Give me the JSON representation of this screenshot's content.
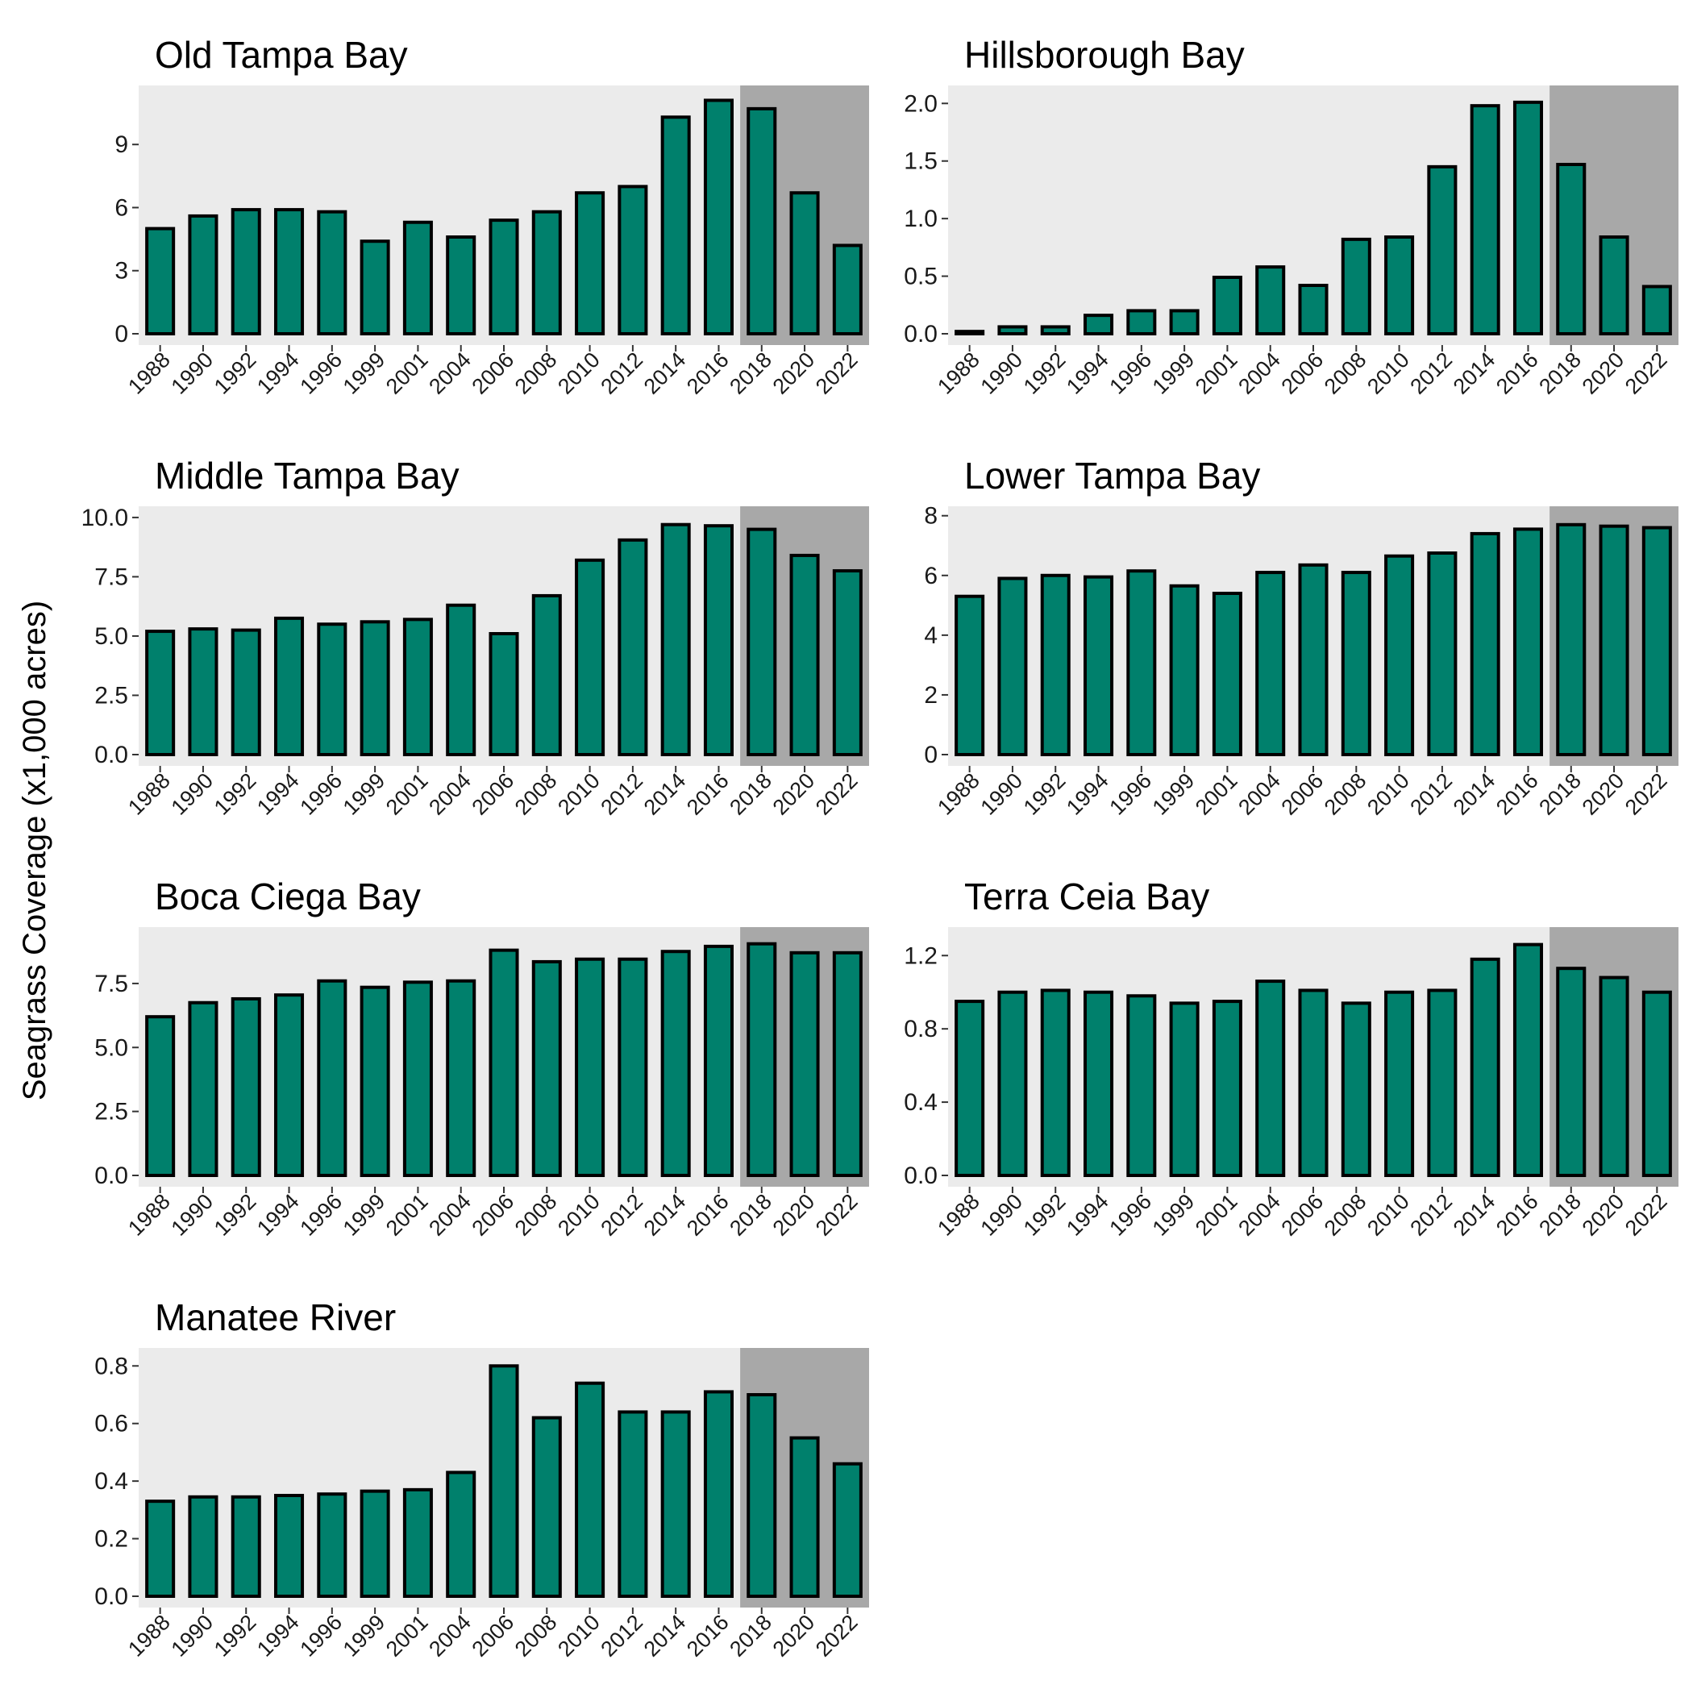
{
  "ylabel": "Seagrass Coverage (x1,000 acres)",
  "colors": {
    "bar": "#00806c",
    "bar_outline": "#000000",
    "panel_bg": "#ebebeb",
    "shade": "#a8a8a8"
  },
  "chart_data": [
    {
      "type": "bar",
      "title": "Old Tampa Bay",
      "categories": [
        "1988",
        "1990",
        "1992",
        "1994",
        "1996",
        "1999",
        "2001",
        "2004",
        "2006",
        "2008",
        "2010",
        "2012",
        "2014",
        "2016",
        "2018",
        "2020",
        "2022"
      ],
      "values": [
        5.0,
        5.6,
        5.9,
        5.9,
        5.8,
        4.4,
        5.3,
        4.6,
        5.4,
        5.8,
        6.7,
        7.0,
        10.3,
        11.1,
        10.7,
        6.7,
        4.2
      ],
      "ylim": [
        0,
        11.5
      ],
      "yticks": [
        0,
        3,
        6,
        9
      ],
      "ytick_labels": [
        "0",
        "3",
        "6",
        "9"
      ],
      "shaded_from": "2018"
    },
    {
      "type": "bar",
      "title": "Hillsborough Bay",
      "categories": [
        "1988",
        "1990",
        "1992",
        "1994",
        "1996",
        "1999",
        "2001",
        "2004",
        "2006",
        "2008",
        "2010",
        "2012",
        "2014",
        "2016",
        "2018",
        "2020",
        "2022"
      ],
      "values": [
        0.02,
        0.06,
        0.06,
        0.16,
        0.2,
        0.2,
        0.49,
        0.58,
        0.42,
        0.82,
        0.84,
        1.45,
        1.98,
        2.01,
        1.47,
        0.84,
        0.41
      ],
      "ylim": [
        0,
        2.1
      ],
      "yticks": [
        0,
        0.5,
        1.0,
        1.5,
        2.0
      ],
      "ytick_labels": [
        "0.0",
        "0.5",
        "1.0",
        "1.5",
        "2.0"
      ],
      "shaded_from": "2018"
    },
    {
      "type": "bar",
      "title": "Middle Tampa Bay",
      "categories": [
        "1988",
        "1990",
        "1992",
        "1994",
        "1996",
        "1999",
        "2001",
        "2004",
        "2006",
        "2008",
        "2010",
        "2012",
        "2014",
        "2016",
        "2018",
        "2020",
        "2022"
      ],
      "values": [
        5.2,
        5.3,
        5.25,
        5.75,
        5.5,
        5.6,
        5.7,
        6.3,
        5.1,
        6.7,
        8.2,
        9.05,
        9.7,
        9.65,
        9.5,
        8.4,
        7.75
      ],
      "ylim": [
        0,
        10.2
      ],
      "yticks": [
        0,
        2.5,
        5.0,
        7.5,
        10.0
      ],
      "ytick_labels": [
        "0.0",
        "2.5",
        "5.0",
        "7.5",
        "10.0"
      ],
      "shaded_from": "2018"
    },
    {
      "type": "bar",
      "title": "Lower Tampa Bay",
      "categories": [
        "1988",
        "1990",
        "1992",
        "1994",
        "1996",
        "1999",
        "2001",
        "2004",
        "2006",
        "2008",
        "2010",
        "2012",
        "2014",
        "2016",
        "2018",
        "2020",
        "2022"
      ],
      "values": [
        5.3,
        5.9,
        6.0,
        5.95,
        6.15,
        5.65,
        5.4,
        6.1,
        6.35,
        6.1,
        6.65,
        6.75,
        7.4,
        7.55,
        7.7,
        7.65,
        7.6
      ],
      "ylim": [
        0,
        8.1
      ],
      "yticks": [
        0,
        2,
        4,
        6,
        8
      ],
      "ytick_labels": [
        "0",
        "2",
        "4",
        "6",
        "8"
      ],
      "shaded_from": "2018"
    },
    {
      "type": "bar",
      "title": "Boca Ciega Bay",
      "categories": [
        "1988",
        "1990",
        "1992",
        "1994",
        "1996",
        "1999",
        "2001",
        "2004",
        "2006",
        "2008",
        "2010",
        "2012",
        "2014",
        "2016",
        "2018",
        "2020",
        "2022"
      ],
      "values": [
        6.2,
        6.75,
        6.9,
        7.05,
        7.6,
        7.35,
        7.55,
        7.6,
        8.8,
        8.35,
        8.45,
        8.45,
        8.75,
        8.95,
        9.05,
        8.7,
        8.7
      ],
      "ylim": [
        0,
        9.45
      ],
      "yticks": [
        0,
        2.5,
        5.0,
        7.5
      ],
      "ytick_labels": [
        "0.0",
        "2.5",
        "5.0",
        "7.5"
      ],
      "shaded_from": "2018"
    },
    {
      "type": "bar",
      "title": "Terra Ceia Bay",
      "categories": [
        "1988",
        "1990",
        "1992",
        "1994",
        "1996",
        "1999",
        "2001",
        "2004",
        "2006",
        "2008",
        "2010",
        "2012",
        "2014",
        "2016",
        "2018",
        "2020",
        "2022"
      ],
      "values": [
        0.95,
        1.0,
        1.01,
        1.0,
        0.98,
        0.94,
        0.95,
        1.06,
        1.01,
        0.94,
        1.0,
        1.01,
        1.18,
        1.26,
        1.13,
        1.08,
        1.0
      ],
      "ylim": [
        0,
        1.32
      ],
      "yticks": [
        0,
        0.4,
        0.8,
        1.2
      ],
      "ytick_labels": [
        "0.0",
        "0.4",
        "0.8",
        "1.2"
      ],
      "shaded_from": "2018"
    },
    {
      "type": "bar",
      "title": "Manatee River",
      "categories": [
        "1988",
        "1990",
        "1992",
        "1994",
        "1996",
        "1999",
        "2001",
        "2004",
        "2006",
        "2008",
        "2010",
        "2012",
        "2014",
        "2016",
        "2018",
        "2020",
        "2022"
      ],
      "values": [
        0.33,
        0.345,
        0.345,
        0.35,
        0.355,
        0.365,
        0.37,
        0.43,
        0.8,
        0.62,
        0.74,
        0.64,
        0.64,
        0.71,
        0.7,
        0.55,
        0.46
      ],
      "ylim": [
        0,
        0.84
      ],
      "yticks": [
        0,
        0.2,
        0.4,
        0.6,
        0.8
      ],
      "ytick_labels": [
        "0.0",
        "0.2",
        "0.4",
        "0.6",
        "0.8"
      ],
      "shaded_from": "2018"
    }
  ]
}
